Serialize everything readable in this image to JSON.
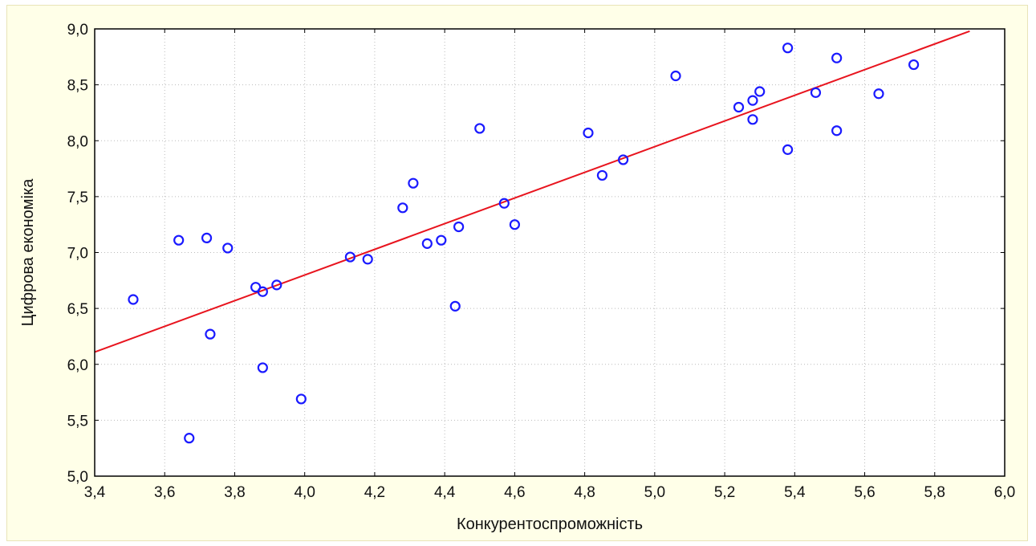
{
  "chart_data": {
    "type": "scatter",
    "title": "",
    "xlabel": "Конкурентоспроможність",
    "ylabel": "Цифрова економіка",
    "xlim": [
      3.4,
      6.0
    ],
    "ylim": [
      5.0,
      9.0
    ],
    "x_ticks": [
      "3,4",
      "3,6",
      "3,8",
      "4,0",
      "4,2",
      "4,4",
      "4,6",
      "4,8",
      "5,0",
      "5,2",
      "5,4",
      "5,6",
      "5,8",
      "6,0"
    ],
    "y_ticks": [
      "5,0",
      "5,5",
      "6,0",
      "6,5",
      "7,0",
      "7,5",
      "8,0",
      "8,5",
      "9,0"
    ],
    "grid": true,
    "points": [
      {
        "x": 3.51,
        "y": 6.58
      },
      {
        "x": 3.64,
        "y": 7.11
      },
      {
        "x": 3.67,
        "y": 5.34
      },
      {
        "x": 3.72,
        "y": 7.13
      },
      {
        "x": 3.73,
        "y": 6.27
      },
      {
        "x": 3.78,
        "y": 7.04
      },
      {
        "x": 3.86,
        "y": 6.69
      },
      {
        "x": 3.88,
        "y": 6.65
      },
      {
        "x": 3.88,
        "y": 5.97
      },
      {
        "x": 3.92,
        "y": 6.71
      },
      {
        "x": 3.99,
        "y": 5.69
      },
      {
        "x": 4.13,
        "y": 6.96
      },
      {
        "x": 4.18,
        "y": 6.94
      },
      {
        "x": 4.28,
        "y": 7.4
      },
      {
        "x": 4.31,
        "y": 7.62
      },
      {
        "x": 4.35,
        "y": 7.08
      },
      {
        "x": 4.39,
        "y": 7.11
      },
      {
        "x": 4.43,
        "y": 6.52
      },
      {
        "x": 4.44,
        "y": 7.23
      },
      {
        "x": 4.5,
        "y": 8.11
      },
      {
        "x": 4.57,
        "y": 7.44
      },
      {
        "x": 4.6,
        "y": 7.25
      },
      {
        "x": 4.81,
        "y": 8.07
      },
      {
        "x": 4.85,
        "y": 7.69
      },
      {
        "x": 4.91,
        "y": 7.83
      },
      {
        "x": 5.06,
        "y": 8.58
      },
      {
        "x": 5.24,
        "y": 8.3
      },
      {
        "x": 5.28,
        "y": 8.36
      },
      {
        "x": 5.28,
        "y": 8.19
      },
      {
        "x": 5.3,
        "y": 8.44
      },
      {
        "x": 5.38,
        "y": 8.83
      },
      {
        "x": 5.38,
        "y": 7.92
      },
      {
        "x": 5.46,
        "y": 8.43
      },
      {
        "x": 5.52,
        "y": 8.74
      },
      {
        "x": 5.52,
        "y": 8.09
      },
      {
        "x": 5.64,
        "y": 8.42
      },
      {
        "x": 5.74,
        "y": 8.68
      }
    ],
    "fit_line": {
      "x1": 3.4,
      "y1": 6.11,
      "x2": 5.9,
      "y2": 8.98
    },
    "colors": {
      "point": "#1a1aff",
      "fit_line": "#e8141e",
      "grid": "#bbbbbb",
      "background": "#ffffe8",
      "plot_bg": "#ffffff"
    }
  }
}
